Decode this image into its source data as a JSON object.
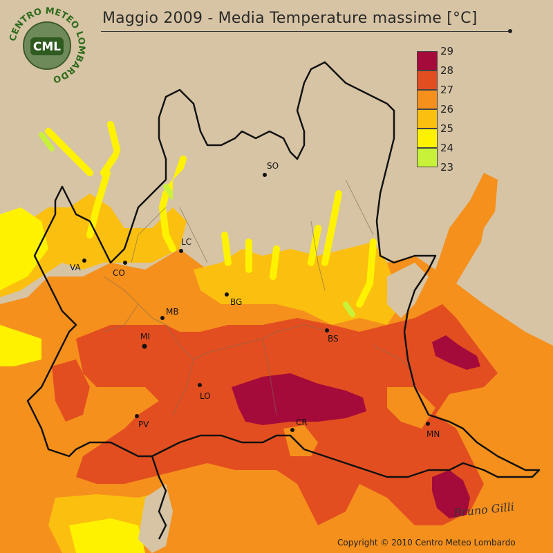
{
  "title": "Maggio 2009 - Media Temperature massime [°C]",
  "legend": {
    "items": [
      {
        "value": "29",
        "color": null
      },
      {
        "value": "28",
        "color": "#a50b3a"
      },
      {
        "value": "27",
        "color": "#e24e20"
      },
      {
        "value": "26",
        "color": "#f5901c"
      },
      {
        "value": "25",
        "color": "#fbbf10"
      },
      {
        "value": "24",
        "color": "#fff200"
      },
      {
        "value": "23",
        "color": "#c8f23a"
      }
    ]
  },
  "cities": [
    {
      "code": "SO"
    },
    {
      "code": "LC"
    },
    {
      "code": "VA"
    },
    {
      "code": "CO"
    },
    {
      "code": "BG"
    },
    {
      "code": "MB"
    },
    {
      "code": "MI"
    },
    {
      "code": "BS"
    },
    {
      "code": "LO"
    },
    {
      "code": "PV"
    },
    {
      "code": "CR"
    },
    {
      "code": "MN"
    }
  ],
  "logo": {
    "ring_text": "CENTRO METEO LOMBARDO",
    "badge": "CML"
  },
  "signature": "Bruno Gilli",
  "copyright": "Copyright © 2010 Centro Meteo Lombardo",
  "colors": {
    "background": "#d7c4a4",
    "t28": "#a50b3a",
    "t27": "#e24e20",
    "t26": "#f5901c",
    "t25": "#fbbf10",
    "t24": "#fff200",
    "t23": "#c8f23a"
  }
}
